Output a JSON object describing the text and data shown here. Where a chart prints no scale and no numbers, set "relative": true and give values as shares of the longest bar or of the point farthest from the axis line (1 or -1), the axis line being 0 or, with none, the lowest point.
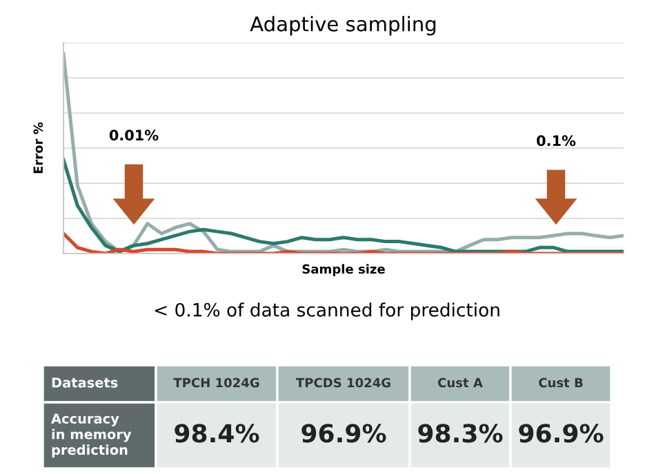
{
  "chart_data": [
    {
      "type": "line",
      "title": "Adaptive sampling",
      "xlabel": "Sample size",
      "ylabel": "Error %",
      "relative": true,
      "grid": "y",
      "categories": [
        null,
        null,
        null,
        null,
        null,
        null,
        null,
        null,
        null,
        null,
        null,
        null,
        null,
        null,
        null,
        null,
        null,
        null,
        null,
        null,
        null,
        null,
        null,
        null,
        null,
        null,
        null,
        null,
        null,
        null,
        null,
        null,
        null,
        null,
        null,
        null,
        null,
        null,
        null,
        null,
        null
      ],
      "series": [
        {
          "color": "#94aeab",
          "values": [
            1.0,
            0.34,
            0.15,
            0.06,
            0.01,
            0.04,
            0.15,
            0.1,
            0.13,
            0.15,
            0.11,
            0.02,
            0.01,
            0.01,
            0.01,
            0.04,
            0.01,
            0.01,
            0.01,
            0.01,
            0.02,
            0.01,
            0.01,
            0.02,
            0.01,
            0.01,
            0.01,
            0.01,
            0.01,
            0.04,
            0.07,
            0.07,
            0.08,
            0.08,
            0.08,
            0.09,
            0.1,
            0.1,
            0.09,
            0.08,
            0.09
          ]
        },
        {
          "color": "#2c7a6c",
          "values": [
            0.47,
            0.24,
            0.13,
            0.04,
            0.01,
            0.04,
            0.05,
            0.07,
            0.09,
            0.11,
            0.12,
            0.11,
            0.1,
            0.08,
            0.06,
            0.05,
            0.06,
            0.08,
            0.07,
            0.07,
            0.08,
            0.07,
            0.07,
            0.06,
            0.06,
            0.05,
            0.04,
            0.03,
            0.01,
            0.01,
            0.01,
            0.01,
            0.01,
            0.01,
            0.03,
            0.03,
            0.01,
            0.01,
            0.01,
            0.01,
            0.01
          ]
        },
        {
          "color": "#d9472b",
          "values": [
            0.1,
            0.03,
            0.01,
            0.0,
            0.02,
            0.01,
            0.02,
            0.02,
            0.02,
            0.01,
            0.01,
            0.0,
            0.0,
            0.0,
            0.0,
            0.0,
            0.01,
            0.0,
            0.0,
            0.0,
            0.0,
            0.0,
            0.01,
            0.0,
            0.0,
            0.0,
            0.0,
            0.0,
            0.0,
            0.0,
            0.0,
            0.0,
            0.01,
            0.0,
            0.0,
            0.0,
            0.0,
            0.0,
            0.0,
            0.0,
            0.0
          ]
        }
      ],
      "annotations": [
        "0.01%",
        "0.1%",
        "< 0.1% of data scanned for prediction"
      ]
    },
    {
      "type": "other",
      "categories": [
        "TPCH 1024G",
        "TPCDS 1024G",
        "Cust A",
        "Cust B"
      ],
      "value_labels": [
        "98.4%",
        "96.9%",
        "98.3%",
        "96.9%"
      ],
      "annotations": [
        "Datasets",
        "Accuracy\nin memory\nprediction"
      ]
    }
  ]
}
